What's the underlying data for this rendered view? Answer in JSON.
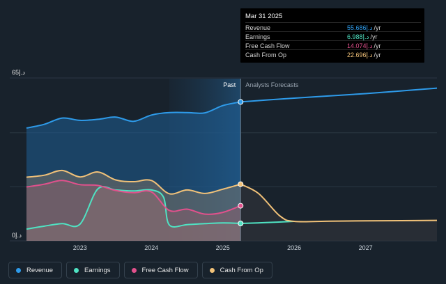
{
  "chart_data": {
    "type": "area",
    "title": "",
    "y_max_label": "65د.إ",
    "y_min_label": "0د.إ",
    "ylim": [
      0,
      65
    ],
    "xlim": [
      2022.25,
      2028.0
    ],
    "divider_x": 2025.25,
    "shade_start_x": 2024.25,
    "past_label": "Past",
    "forecast_label": "Analysts Forecasts",
    "x_ticks": [
      {
        "x": 2023,
        "label": "2023"
      },
      {
        "x": 2024,
        "label": "2024"
      },
      {
        "x": 2025,
        "label": "2025"
      },
      {
        "x": 2026,
        "label": "2026"
      },
      {
        "x": 2027,
        "label": "2027"
      }
    ],
    "series": [
      {
        "name": "Revenue",
        "color": "#2e9bea",
        "past": [
          [
            2022.25,
            45.2
          ],
          [
            2022.5,
            46.7
          ],
          [
            2022.75,
            49.2
          ],
          [
            2023.0,
            48.3
          ],
          [
            2023.25,
            48.7
          ],
          [
            2023.5,
            49.6
          ],
          [
            2023.75,
            47.9
          ],
          [
            2024.0,
            50.4
          ],
          [
            2024.25,
            51.4
          ],
          [
            2024.5,
            51.4
          ],
          [
            2024.75,
            51.3
          ],
          [
            2025.0,
            54.2
          ],
          [
            2025.25,
            55.686
          ]
        ],
        "forecast": [
          [
            2025.25,
            55.686
          ],
          [
            2025.6,
            56.4
          ],
          [
            2026.0,
            57.2
          ],
          [
            2026.5,
            58.1
          ],
          [
            2027.0,
            59.0
          ],
          [
            2027.5,
            60.1
          ],
          [
            2028.0,
            61.2
          ]
        ]
      },
      {
        "name": "Earnings",
        "color": "#4fe3c3",
        "past": [
          [
            2022.25,
            4.7
          ],
          [
            2022.5,
            5.9
          ],
          [
            2022.75,
            6.9
          ],
          [
            2023.0,
            6.7
          ],
          [
            2023.25,
            20.8
          ],
          [
            2023.5,
            20.4
          ],
          [
            2023.75,
            20.0
          ],
          [
            2024.0,
            20.4
          ],
          [
            2024.17,
            17.5
          ],
          [
            2024.25,
            6.4
          ],
          [
            2024.5,
            6.5
          ],
          [
            2024.75,
            6.9
          ],
          [
            2025.0,
            7.2
          ],
          [
            2025.25,
            6.988
          ]
        ],
        "forecast": [
          [
            2025.25,
            6.988
          ],
          [
            2025.6,
            7.3
          ],
          [
            2026.0,
            7.8
          ]
        ]
      },
      {
        "name": "Free Cash Flow",
        "color": "#e1518c",
        "past": [
          [
            2022.25,
            21.6
          ],
          [
            2022.5,
            22.7
          ],
          [
            2022.75,
            24.2
          ],
          [
            2023.0,
            22.5
          ],
          [
            2023.25,
            22.2
          ],
          [
            2023.5,
            20.2
          ],
          [
            2023.75,
            19.3
          ],
          [
            2024.0,
            19.6
          ],
          [
            2024.25,
            12.2
          ],
          [
            2024.5,
            12.7
          ],
          [
            2024.75,
            10.7
          ],
          [
            2025.0,
            11.4
          ],
          [
            2025.25,
            14.074
          ]
        ],
        "forecast": []
      },
      {
        "name": "Cash From Op",
        "color": "#f2c279",
        "past": [
          [
            2022.25,
            25.5
          ],
          [
            2022.5,
            26.3
          ],
          [
            2022.75,
            28.2
          ],
          [
            2023.0,
            25.6
          ],
          [
            2023.25,
            27.6
          ],
          [
            2023.5,
            24.4
          ],
          [
            2023.75,
            23.7
          ],
          [
            2024.0,
            24.2
          ],
          [
            2024.25,
            18.9
          ],
          [
            2024.5,
            20.4
          ],
          [
            2024.75,
            19.0
          ],
          [
            2025.0,
            20.7
          ],
          [
            2025.25,
            22.696
          ]
        ],
        "forecast": [
          [
            2025.25,
            22.696
          ],
          [
            2025.5,
            19.0
          ],
          [
            2025.8,
            10.0
          ],
          [
            2026.0,
            7.8
          ],
          [
            2026.5,
            7.9
          ],
          [
            2027.0,
            8.0
          ],
          [
            2027.5,
            8.1
          ],
          [
            2028.0,
            8.2
          ]
        ]
      }
    ]
  },
  "tooltip": {
    "date": "Mar 31 2025",
    "rows": [
      {
        "label": "Revenue",
        "value": "55.686د.إ",
        "unit": "/yr",
        "color": "#2e9bea"
      },
      {
        "label": "Earnings",
        "value": "6.988د.إ",
        "unit": "/yr",
        "color": "#4fe3c3"
      },
      {
        "label": "Free Cash Flow",
        "value": "14.074د.إ",
        "unit": "/yr",
        "color": "#e1518c"
      },
      {
        "label": "Cash From Op",
        "value": "22.696د.إ",
        "unit": "/yr",
        "color": "#f2c279"
      }
    ]
  },
  "legend": [
    {
      "label": "Revenue",
      "color": "#2e9bea"
    },
    {
      "label": "Earnings",
      "color": "#4fe3c3"
    },
    {
      "label": "Free Cash Flow",
      "color": "#e1518c"
    },
    {
      "label": "Cash From Op",
      "color": "#f2c279"
    }
  ]
}
